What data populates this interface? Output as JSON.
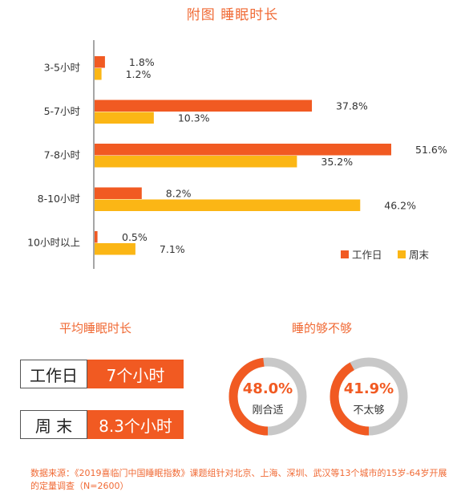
{
  "title": "附图  睡眠时长",
  "colors": {
    "workday": "#f15a22",
    "weekend": "#fbb615",
    "gauge_track": "#c8c8c8"
  },
  "chart_data": {
    "type": "bar",
    "orientation": "horizontal",
    "categories": [
      "3-5小时",
      "5-7小时",
      "7-8小时",
      "8-10小时",
      "10小时以上"
    ],
    "series": [
      {
        "name": "工作日",
        "values": [
          1.8,
          37.8,
          51.6,
          8.2,
          0.5
        ],
        "labels": [
          "1.8%",
          "37.8%",
          "51.6%",
          "8.2%",
          "0.5%"
        ]
      },
      {
        "name": "周末",
        "values": [
          1.2,
          10.3,
          35.2,
          46.2,
          7.1
        ],
        "labels": [
          "1.2%",
          "10.3%",
          "35.2%",
          "46.2%",
          "7.1%"
        ]
      }
    ],
    "xlim": [
      0,
      55
    ],
    "legend_position": "bottom-right"
  },
  "avg": {
    "title": "平均睡眠时长",
    "rows": [
      {
        "key": "工作日",
        "value": "7个小时"
      },
      {
        "key": "周 末",
        "value": "8.3个小时"
      }
    ]
  },
  "enough": {
    "title": "睡的够不够",
    "gauges": [
      {
        "pct": "48.0%",
        "fraction": 0.48,
        "label": "刚合适"
      },
      {
        "pct": "41.9%",
        "fraction": 0.419,
        "label": "不太够"
      }
    ]
  },
  "source": "数据来源：《2019喜临门中国睡眠指数》课题组针对北京、上海、深圳、武汉等13个城市的15岁-64岁开展的定量调查（N=2600）"
}
